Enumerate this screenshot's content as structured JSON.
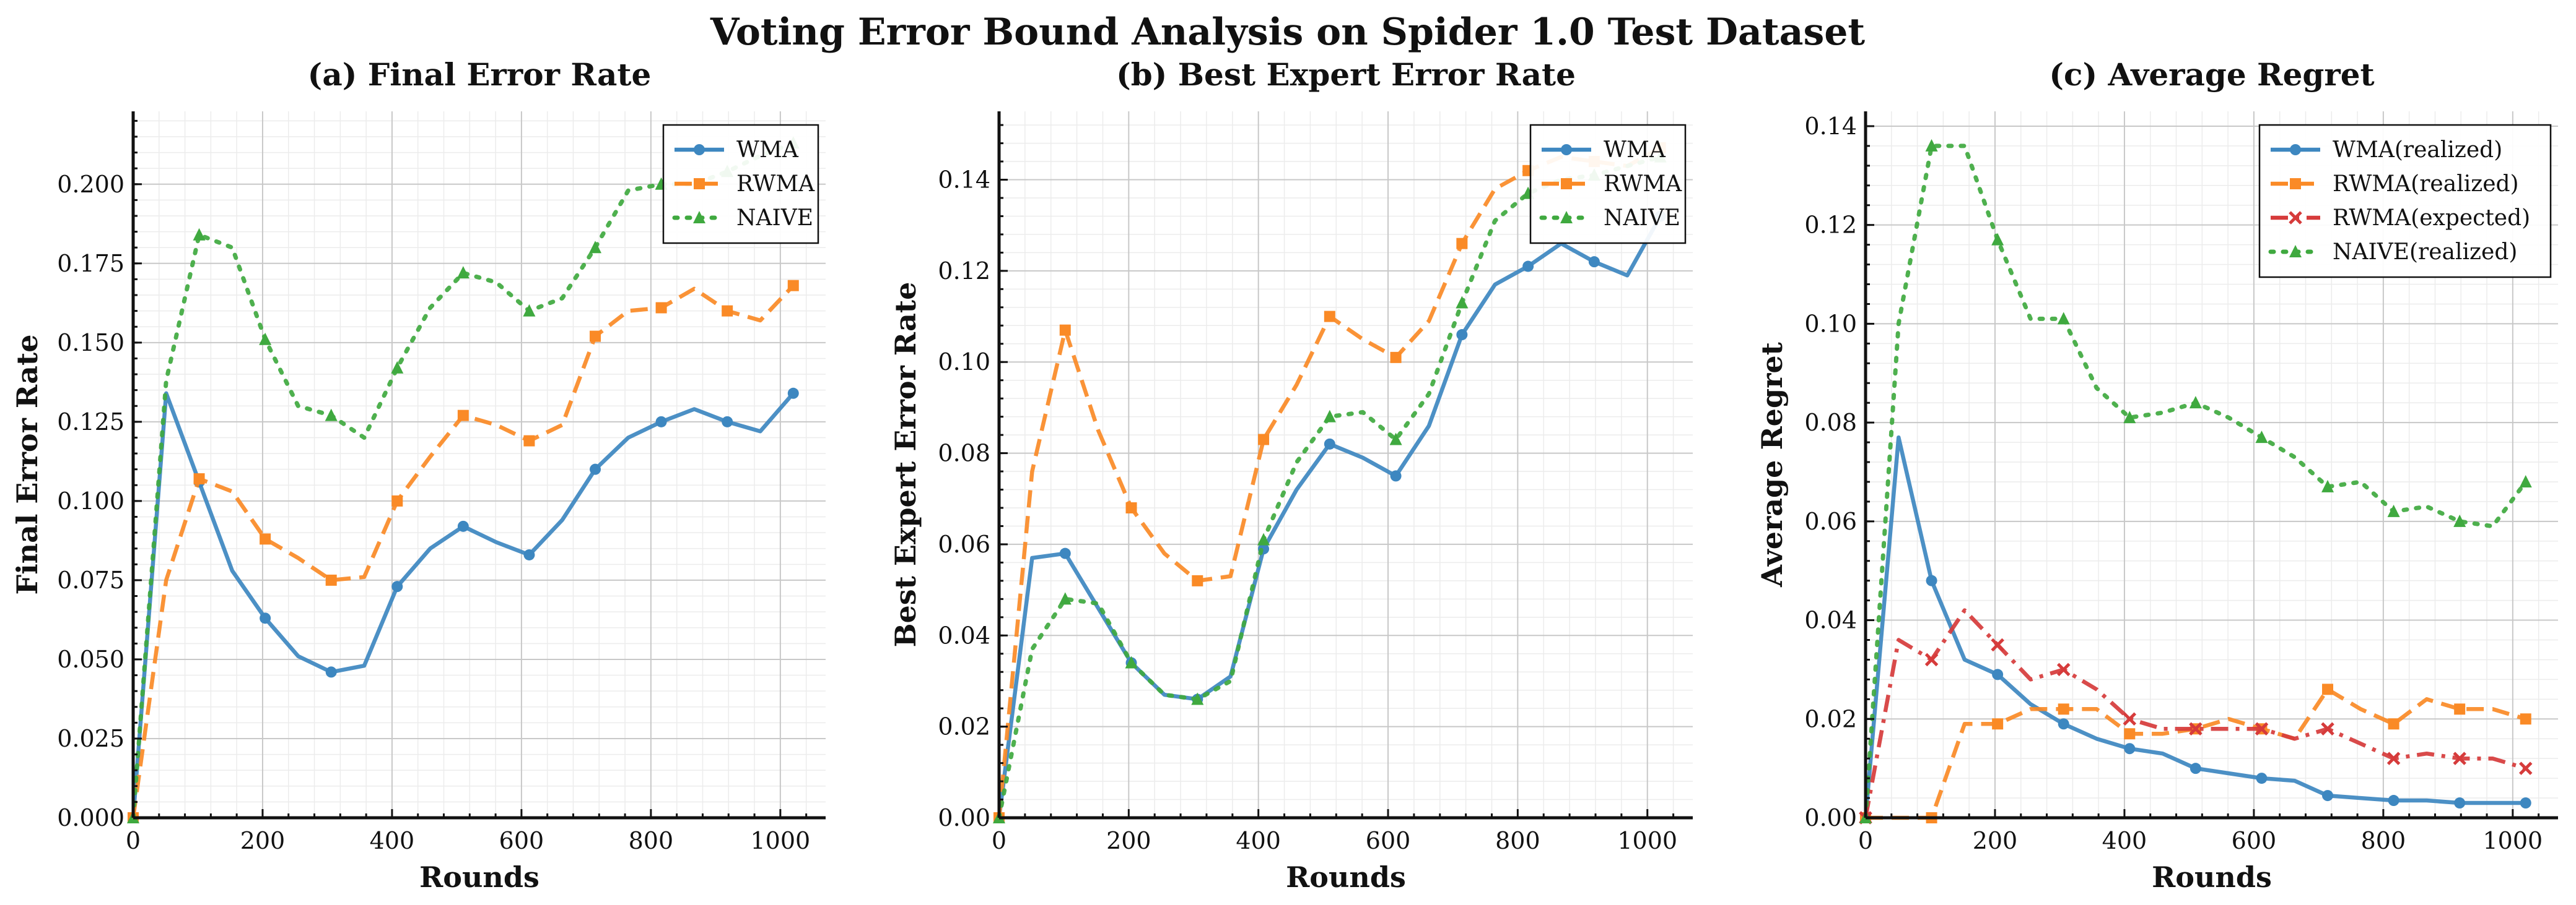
{
  "suptitle": "Voting Error Bound Analysis on Spider 1.0 Test Dataset",
  "colors": {
    "wma": "#3d87c0",
    "rwma": "#fa8a26",
    "naive": "#3fa93f",
    "rwma_expected": "#d63b3b"
  },
  "chart_data": [
    {
      "type": "line",
      "title": "(a) Final Error Rate",
      "xlabel": "Rounds",
      "ylabel": "Final Error Rate",
      "xlim": [
        0,
        1070
      ],
      "ylim": [
        0,
        0.223
      ],
      "xticks": [
        0,
        200,
        400,
        600,
        800,
        1000
      ],
      "yticks": [
        0.0,
        0.025,
        0.05,
        0.075,
        0.1,
        0.125,
        0.15,
        0.175,
        0.2
      ],
      "ytick_decimals": 3,
      "grid": true,
      "legend": "top-right",
      "series": [
        {
          "name": "WMA",
          "key": "wma",
          "style": "solid",
          "marker": "circle",
          "x": [
            0,
            51,
            102,
            153,
            204,
            255,
            306,
            357,
            408,
            459,
            510,
            561,
            612,
            663,
            714,
            765,
            816,
            867,
            918,
            969,
            1020
          ],
          "y": [
            0.0,
            0.134,
            0.106,
            0.078,
            0.063,
            0.051,
            0.046,
            0.048,
            0.073,
            0.085,
            0.092,
            0.087,
            0.083,
            0.094,
            0.11,
            0.12,
            0.125,
            0.129,
            0.125,
            0.122,
            0.134
          ]
        },
        {
          "name": "RWMA",
          "key": "rwma",
          "style": "dashed",
          "marker": "square",
          "x": [
            0,
            51,
            102,
            153,
            204,
            255,
            306,
            357,
            408,
            459,
            510,
            561,
            612,
            663,
            714,
            765,
            816,
            867,
            918,
            969,
            1020
          ],
          "y": [
            0.0,
            0.075,
            0.107,
            0.103,
            0.088,
            0.082,
            0.075,
            0.076,
            0.1,
            0.114,
            0.127,
            0.124,
            0.119,
            0.124,
            0.152,
            0.16,
            0.161,
            0.167,
            0.16,
            0.157,
            0.168
          ]
        },
        {
          "name": "NAIVE",
          "key": "naive",
          "style": "dotted",
          "marker": "triangle",
          "x": [
            0,
            51,
            102,
            153,
            204,
            255,
            306,
            357,
            408,
            459,
            510,
            561,
            612,
            663,
            714,
            765,
            816,
            867,
            918,
            969,
            1020
          ],
          "y": [
            0.0,
            0.138,
            0.184,
            0.18,
            0.151,
            0.13,
            0.127,
            0.12,
            0.142,
            0.161,
            0.172,
            0.169,
            0.16,
            0.164,
            0.18,
            0.198,
            0.2,
            0.2,
            0.204,
            0.209,
            0.213
          ]
        }
      ]
    },
    {
      "type": "line",
      "title": "(b) Best Expert Error Rate",
      "xlabel": "Rounds",
      "ylabel": "Best Expert Error Rate",
      "xlim": [
        0,
        1070
      ],
      "ylim": [
        0,
        0.155
      ],
      "xticks": [
        0,
        200,
        400,
        600,
        800,
        1000
      ],
      "yticks": [
        0.0,
        0.02,
        0.04,
        0.06,
        0.08,
        0.1,
        0.12,
        0.14
      ],
      "ytick_decimals": 2,
      "grid": true,
      "legend": "top-right",
      "series": [
        {
          "name": "WMA",
          "key": "wma",
          "style": "solid",
          "marker": "circle",
          "x": [
            0,
            51,
            102,
            153,
            204,
            255,
            306,
            357,
            408,
            459,
            510,
            561,
            612,
            663,
            714,
            765,
            816,
            867,
            918,
            969,
            1020
          ],
          "y": [
            0.0,
            0.057,
            0.058,
            0.046,
            0.034,
            0.027,
            0.026,
            0.031,
            0.059,
            0.072,
            0.082,
            0.079,
            0.075,
            0.086,
            0.106,
            0.117,
            0.121,
            0.126,
            0.122,
            0.119,
            0.132
          ]
        },
        {
          "name": "RWMA",
          "key": "rwma",
          "style": "dashed",
          "marker": "square",
          "x": [
            0,
            51,
            102,
            153,
            204,
            255,
            306,
            357,
            408,
            459,
            510,
            561,
            612,
            663,
            714,
            765,
            816,
            867,
            918,
            969,
            1020
          ],
          "y": [
            0.0,
            0.076,
            0.107,
            0.085,
            0.068,
            0.058,
            0.052,
            0.053,
            0.083,
            0.095,
            0.11,
            0.105,
            0.101,
            0.109,
            0.126,
            0.138,
            0.142,
            0.145,
            0.144,
            0.143,
            0.147
          ]
        },
        {
          "name": "NAIVE",
          "key": "naive",
          "style": "dotted",
          "marker": "triangle",
          "x": [
            0,
            51,
            102,
            153,
            204,
            255,
            306,
            357,
            408,
            459,
            510,
            561,
            612,
            663,
            714,
            765,
            816,
            867,
            918,
            969,
            1020
          ],
          "y": [
            0.0,
            0.037,
            0.048,
            0.047,
            0.034,
            0.027,
            0.026,
            0.03,
            0.061,
            0.078,
            0.088,
            0.089,
            0.083,
            0.093,
            0.113,
            0.131,
            0.137,
            0.14,
            0.141,
            0.143,
            0.145
          ]
        }
      ]
    },
    {
      "type": "line",
      "title": "(c) Average Regret",
      "xlabel": "Rounds",
      "ylabel": "Average Regret",
      "xlim": [
        0,
        1070
      ],
      "ylim": [
        0,
        0.143
      ],
      "xticks": [
        0,
        200,
        400,
        600,
        800,
        1000
      ],
      "yticks": [
        0.0,
        0.02,
        0.04,
        0.06,
        0.08,
        0.1,
        0.12,
        0.14
      ],
      "ytick_decimals": 2,
      "grid": true,
      "legend": "top-right",
      "series": [
        {
          "name": "WMA(realized)",
          "key": "wma",
          "style": "solid",
          "marker": "circle",
          "x": [
            0,
            51,
            102,
            153,
            204,
            255,
            306,
            357,
            408,
            459,
            510,
            561,
            612,
            663,
            714,
            765,
            816,
            867,
            918,
            969,
            1020
          ],
          "y": [
            0.0,
            0.077,
            0.048,
            0.032,
            0.029,
            0.023,
            0.019,
            0.016,
            0.014,
            0.013,
            0.01,
            0.009,
            0.008,
            0.0075,
            0.0045,
            0.004,
            0.0035,
            0.0035,
            0.003,
            0.003,
            0.003
          ]
        },
        {
          "name": "RWMA(realized)",
          "key": "rwma",
          "style": "dashed",
          "marker": "square",
          "x": [
            0,
            51,
            102,
            153,
            204,
            255,
            306,
            357,
            408,
            459,
            510,
            561,
            612,
            663,
            714,
            765,
            816,
            867,
            918,
            969,
            1020
          ],
          "y": [
            0.0,
            0.0,
            0.0,
            0.019,
            0.019,
            0.022,
            0.022,
            0.022,
            0.017,
            0.017,
            0.018,
            0.02,
            0.018,
            0.016,
            0.026,
            0.022,
            0.019,
            0.024,
            0.022,
            0.022,
            0.02
          ]
        },
        {
          "name": "RWMA(expected)",
          "key": "rwma_expected",
          "style": "dashdot",
          "marker": "x",
          "x": [
            0,
            51,
            102,
            153,
            204,
            255,
            306,
            357,
            408,
            459,
            510,
            561,
            612,
            663,
            714,
            765,
            816,
            867,
            918,
            969,
            1020
          ],
          "y": [
            0.0,
            0.036,
            0.032,
            0.042,
            0.035,
            0.028,
            0.03,
            0.026,
            0.02,
            0.018,
            0.018,
            0.018,
            0.018,
            0.016,
            0.018,
            0.015,
            0.012,
            0.013,
            0.012,
            0.012,
            0.01
          ]
        },
        {
          "name": "NAIVE(realized)",
          "key": "naive",
          "style": "dotted",
          "marker": "triangle",
          "x": [
            0,
            51,
            102,
            153,
            204,
            255,
            306,
            357,
            408,
            459,
            510,
            561,
            612,
            663,
            714,
            765,
            816,
            867,
            918,
            969,
            1020
          ],
          "y": [
            0.0,
            0.1,
            0.136,
            0.136,
            0.117,
            0.101,
            0.101,
            0.087,
            0.081,
            0.082,
            0.084,
            0.081,
            0.077,
            0.073,
            0.067,
            0.068,
            0.062,
            0.063,
            0.06,
            0.059,
            0.068
          ]
        }
      ]
    }
  ]
}
